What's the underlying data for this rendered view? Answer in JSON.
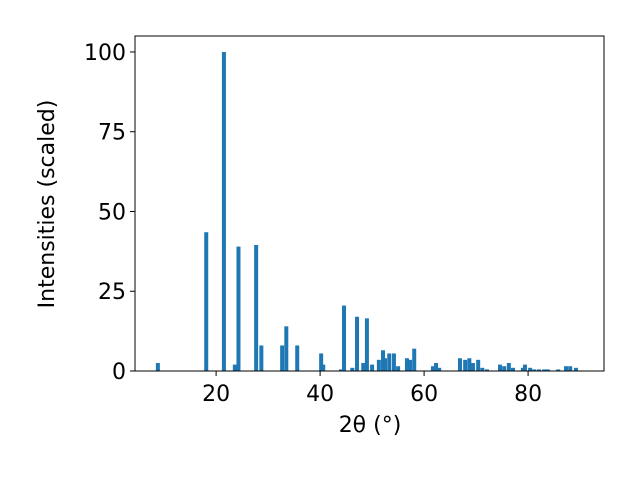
{
  "chart_data": {
    "type": "bar",
    "x_label": "2θ (°)",
    "y_label": "Intensities (scaled)",
    "x": [
      8.8,
      18.1,
      21.5,
      23.6,
      24.3,
      27.7,
      28.7,
      32.7,
      33.5,
      35.6,
      40.2,
      40.6,
      44.0,
      44.6,
      46.2,
      47.1,
      48.3,
      49.0,
      50.0,
      51.3,
      52.1,
      52.5,
      53.3,
      54.2,
      55.0,
      56.7,
      57.3,
      58.1,
      61.7,
      62.3,
      62.9,
      66.9,
      67.9,
      68.7,
      69.4,
      70.4,
      71.2,
      72.1,
      74.6,
      75.4,
      76.3,
      77.1,
      79.0,
      79.4,
      80.4,
      81.2,
      82.1,
      83.1,
      83.8,
      85.8,
      87.3,
      88.1,
      89.2
    ],
    "values": [
      2.5,
      43.5,
      100,
      2,
      39,
      39.5,
      8,
      8,
      14,
      8,
      5.5,
      2,
      0.5,
      20.5,
      1,
      17,
      2.5,
      16.5,
      2,
      3.5,
      6.5,
      4,
      5.5,
      5.5,
      1.5,
      4,
      3.5,
      7,
      1.5,
      2.5,
      1,
      4,
      3.5,
      4,
      2.5,
      3.5,
      1,
      0.5,
      2,
      1.5,
      2.5,
      1,
      1,
      2,
      1,
      0.5,
      0.5,
      0.5,
      0.5,
      0.5,
      1.5,
      1.5,
      1
    ],
    "color": "#1f77b4",
    "xlim": [
      4.4,
      94.6
    ],
    "xticks": [
      20,
      40,
      60,
      80
    ],
    "ylim": [
      0,
      105
    ],
    "yticks": [
      0,
      25,
      50,
      75,
      100
    ]
  }
}
